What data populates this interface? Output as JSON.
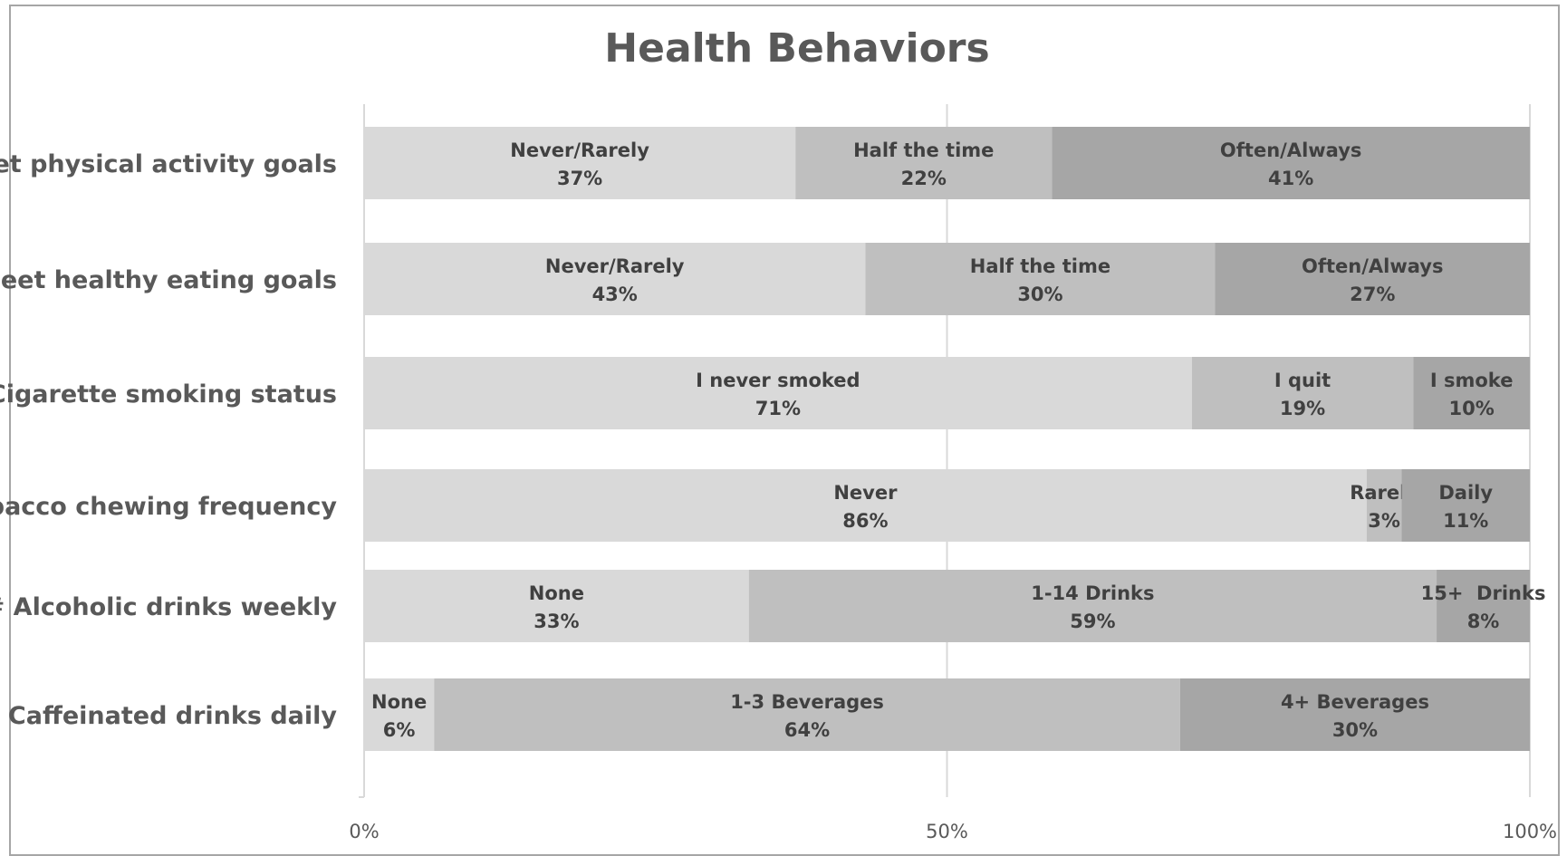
{
  "chart_data": {
    "type": "bar",
    "orientation": "horizontal",
    "stacked": "percent",
    "title": "Health Behaviors",
    "categories": [
      "Meet physical activity goals",
      "Meet healthy eating goals",
      "Cigarette smoking status",
      "Tobacco chewing frequency",
      "# Alcoholic drinks weekly",
      "# Caffeinated drinks daily"
    ],
    "rows": [
      {
        "category": "Meet physical activity goals",
        "segments": [
          {
            "label": "Never/Rarely",
            "value": 37,
            "value_label": "37%",
            "color": "#d9d9d9"
          },
          {
            "label": "Half the time",
            "value": 22,
            "value_label": "22%",
            "color": "#bfbfbf"
          },
          {
            "label": "Often/Always",
            "value": 41,
            "value_label": "41%",
            "color": "#a6a6a6"
          }
        ]
      },
      {
        "category": "Meet healthy eating goals",
        "segments": [
          {
            "label": "Never/Rarely",
            "value": 43,
            "value_label": "43%",
            "color": "#d9d9d9"
          },
          {
            "label": "Half the time",
            "value": 30,
            "value_label": "30%",
            "color": "#bfbfbf"
          },
          {
            "label": "Often/Always",
            "value": 27,
            "value_label": "27%",
            "color": "#a6a6a6"
          }
        ]
      },
      {
        "category": "Cigarette smoking status",
        "segments": [
          {
            "label": "I never smoked",
            "value": 71,
            "value_label": "71%",
            "color": "#d9d9d9"
          },
          {
            "label": "I quit",
            "value": 19,
            "value_label": "19%",
            "color": "#bfbfbf"
          },
          {
            "label": "I smoke",
            "value": 10,
            "value_label": "10%",
            "color": "#a6a6a6"
          }
        ]
      },
      {
        "category": "Tobacco chewing frequency",
        "segments": [
          {
            "label": "Never",
            "value": 86,
            "value_label": "86%",
            "color": "#d9d9d9"
          },
          {
            "label": "Rarely",
            "value": 3,
            "value_label": "3%",
            "color": "#bfbfbf"
          },
          {
            "label": "Daily",
            "value": 11,
            "value_label": "11%",
            "color": "#a6a6a6"
          }
        ]
      },
      {
        "category": "# Alcoholic drinks weekly",
        "segments": [
          {
            "label": "None",
            "value": 33,
            "value_label": "33%",
            "color": "#d9d9d9"
          },
          {
            "label": "1-14 Drinks",
            "value": 59,
            "value_label": "59%",
            "color": "#bfbfbf"
          },
          {
            "label": "15+  Drinks",
            "value": 8,
            "value_label": "8%",
            "color": "#a6a6a6"
          }
        ]
      },
      {
        "category": "# Caffeinated drinks daily",
        "segments": [
          {
            "label": "None",
            "value": 6,
            "value_label": "6%",
            "color": "#d9d9d9"
          },
          {
            "label": "1-3 Beverages",
            "value": 64,
            "value_label": "64%",
            "color": "#bfbfbf"
          },
          {
            "label": "4+ Beverages",
            "value": 30,
            "value_label": "30%",
            "color": "#a6a6a6"
          }
        ]
      }
    ],
    "x_ticks": [
      "0%",
      "50%",
      "100%"
    ],
    "xlim": [
      0,
      100
    ],
    "grid": true,
    "legend": "none"
  }
}
